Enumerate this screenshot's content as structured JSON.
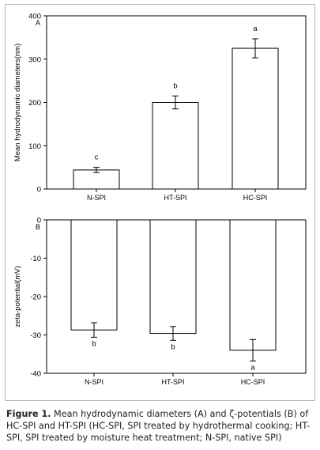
{
  "chart_data": [
    {
      "type": "bar",
      "panel_label": "A",
      "ylabel": "Mean hydrodynamic diameters(nm)",
      "categories": [
        "N-SPI",
        "HT-SPI",
        "HC-SPI"
      ],
      "values": [
        44,
        200,
        325
      ],
      "errors": [
        6,
        15,
        22
      ],
      "significance": [
        "c",
        "b",
        "a"
      ],
      "ylim": [
        0,
        400
      ],
      "yticks": [
        0,
        100,
        200,
        300,
        400
      ],
      "grid": false,
      "bar_fill": "#ffffff",
      "bar_stroke": "#000000"
    },
    {
      "type": "bar",
      "panel_label": "B",
      "ylabel": "zeta-potential(mV)",
      "categories": [
        "N-SPI",
        "HT-SPI",
        "HC-SPI"
      ],
      "values": [
        -28.7,
        -29.6,
        -34
      ],
      "errors": [
        1.9,
        1.8,
        2.8
      ],
      "significance": [
        "b",
        "b",
        "a"
      ],
      "ylim": [
        -40,
        0
      ],
      "yticks": [
        0,
        -10,
        -20,
        -30,
        -40
      ],
      "grid": false,
      "bar_fill": "#ffffff",
      "bar_stroke": "#000000"
    }
  ],
  "caption": {
    "label": "Figure 1.",
    "text": "Mean hydrodynamic diameters (A) and ζ-potentials (B) of HC-SPI and HT-SPI (HC-SPI, SPI treated by hydrothermal cooking; HT-SPI, SPI treated by moisture heat treatment; N-SPI, native SPI)"
  }
}
